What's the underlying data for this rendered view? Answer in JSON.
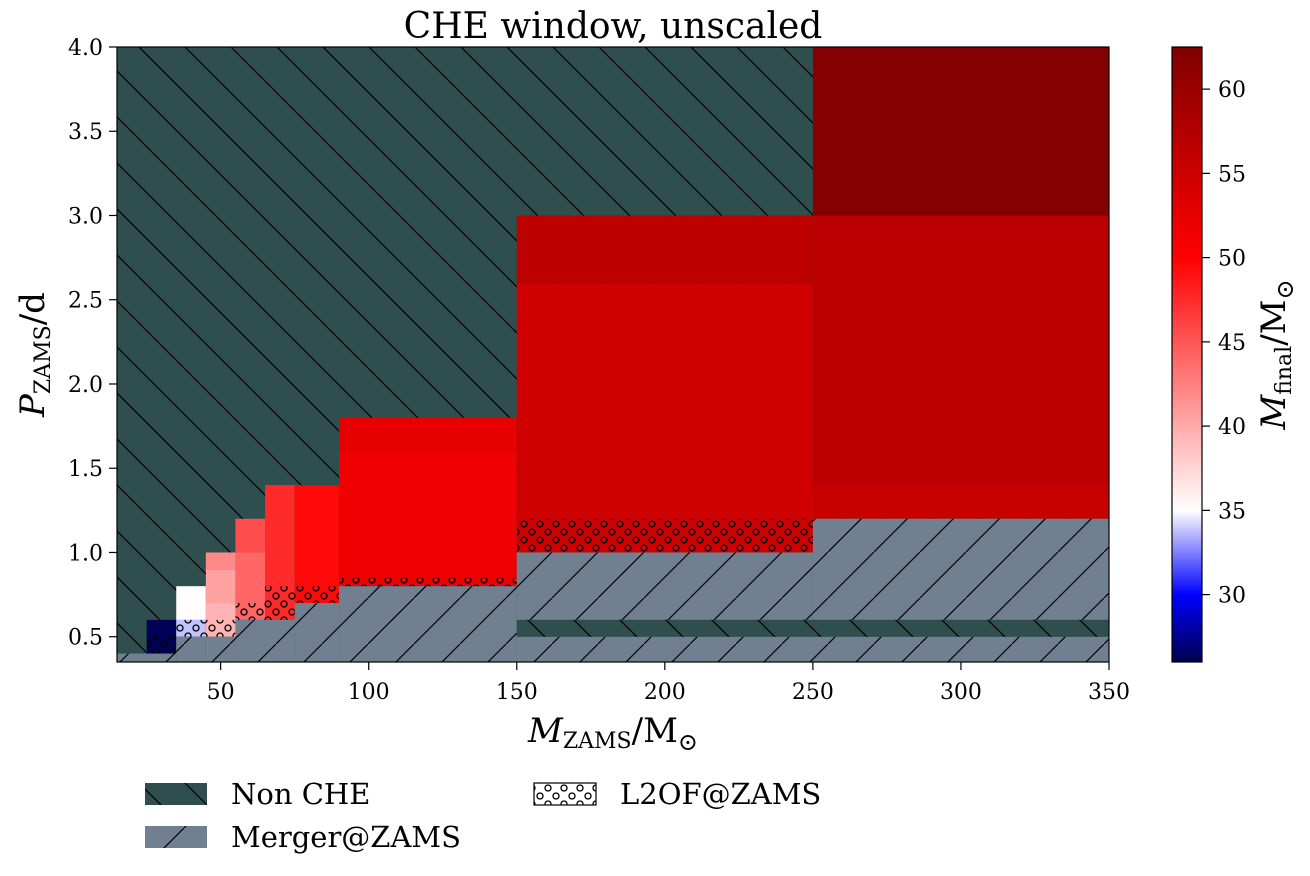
{
  "chart_data": {
    "type": "heatmap",
    "title": "CHE window, unscaled",
    "xlabel": {
      "var": "M",
      "sub": "ZAMS",
      "unit": "M",
      "unit_sub": "⊙"
    },
    "ylabel": {
      "var": "P",
      "sub": "ZAMS",
      "unit": "d"
    },
    "xlim": [
      15,
      350
    ],
    "ylim": [
      0.35,
      4.0
    ],
    "x_ticks": [
      {
        "value": 50,
        "label": "50"
      },
      {
        "value": 100,
        "label": "100"
      },
      {
        "value": 150,
        "label": "150"
      },
      {
        "value": 200,
        "label": "200"
      },
      {
        "value": 250,
        "label": "250"
      },
      {
        "value": 300,
        "label": "300"
      },
      {
        "value": 350,
        "label": "350"
      }
    ],
    "y_ticks": [
      {
        "value": 0.5,
        "label": "0.5"
      },
      {
        "value": 1.0,
        "label": "1.0"
      },
      {
        "value": 1.5,
        "label": "1.5"
      },
      {
        "value": 2.0,
        "label": "2.0"
      },
      {
        "value": 2.5,
        "label": "2.5"
      },
      {
        "value": 3.0,
        "label": "3.0"
      },
      {
        "value": 3.5,
        "label": "3.5"
      },
      {
        "value": 4.0,
        "label": "4.0"
      }
    ],
    "colorbar": {
      "label": {
        "var": "M",
        "sub": "final",
        "unit": "M",
        "unit_sub": "⊙"
      },
      "range": [
        26,
        62.5
      ],
      "ticks": [
        {
          "value": 30,
          "label": "30"
        },
        {
          "value": 35,
          "label": "35"
        },
        {
          "value": 40,
          "label": "40"
        },
        {
          "value": 45,
          "label": "45"
        },
        {
          "value": 50,
          "label": "50"
        },
        {
          "value": 55,
          "label": "55"
        },
        {
          "value": 60,
          "label": "60"
        }
      ],
      "stops": [
        {
          "value": 26,
          "color": "#00004c"
        },
        {
          "value": 30,
          "color": "#0000ff"
        },
        {
          "value": 35,
          "color": "#ffffff"
        },
        {
          "value": 50,
          "color": "#ff0000"
        },
        {
          "value": 62.5,
          "color": "#800000"
        }
      ]
    },
    "regions": {
      "non_che": {
        "color": "#2f4f4f",
        "hatch": "backslash"
      },
      "merger": {
        "color": "#708090",
        "hatch": "slash"
      },
      "l2of": {
        "hatch": "circles"
      }
    },
    "cells": [
      {
        "x": [
          25,
          35
        ],
        "y": [
          0.4,
          0.6
        ],
        "m_final": 26.2
      },
      {
        "x": [
          35,
          45
        ],
        "y": [
          0.5,
          0.6
        ],
        "m_final": 33.8
      },
      {
        "x": [
          35,
          45
        ],
        "y": [
          0.6,
          0.8
        ],
        "m_final": 35.1
      },
      {
        "x": [
          45,
          55
        ],
        "y": [
          0.5,
          0.7
        ],
        "m_final": 39.5
      },
      {
        "x": [
          45,
          55
        ],
        "y": [
          0.7,
          0.9
        ],
        "m_final": 40.5
      },
      {
        "x": [
          45,
          55
        ],
        "y": [
          0.9,
          1.0
        ],
        "m_final": 42.0
      },
      {
        "x": [
          55,
          65
        ],
        "y": [
          0.6,
          1.0
        ],
        "m_final": 44.0
      },
      {
        "x": [
          55,
          65
        ],
        "y": [
          1.0,
          1.2
        ],
        "m_final": 45.5
      },
      {
        "x": [
          65,
          75
        ],
        "y": [
          0.6,
          1.4
        ],
        "m_final": 47.5
      },
      {
        "x": [
          75,
          90
        ],
        "y": [
          0.7,
          1.4
        ],
        "m_final": 49.5
      },
      {
        "x": [
          90,
          150
        ],
        "y": [
          0.8,
          1.6
        ],
        "m_final": 51.5
      },
      {
        "x": [
          90,
          150
        ],
        "y": [
          1.6,
          1.8
        ],
        "m_final": 52.5
      },
      {
        "x": [
          150,
          250
        ],
        "y": [
          1.0,
          2.6
        ],
        "m_final": 54.5
      },
      {
        "x": [
          150,
          250
        ],
        "y": [
          2.6,
          3.0
        ],
        "m_final": 56.5
      },
      {
        "x": [
          250,
          350
        ],
        "y": [
          1.2,
          1.4
        ],
        "m_final": 55.5
      },
      {
        "x": [
          250,
          350
        ],
        "y": [
          1.4,
          3.0
        ],
        "m_final": 56.8
      },
      {
        "x": [
          250,
          350
        ],
        "y": [
          3.0,
          4.0
        ],
        "m_final": 62.0
      }
    ],
    "merger_regions": [
      {
        "x": [
          15,
          25
        ],
        "y": [
          0.35,
          0.4
        ]
      },
      {
        "x": [
          25,
          35
        ],
        "y": [
          0.35,
          0.4
        ]
      },
      {
        "x": [
          35,
          45
        ],
        "y": [
          0.35,
          0.5
        ]
      },
      {
        "x": [
          45,
          55
        ],
        "y": [
          0.35,
          0.5
        ]
      },
      {
        "x": [
          55,
          65
        ],
        "y": [
          0.35,
          0.6
        ]
      },
      {
        "x": [
          65,
          75
        ],
        "y": [
          0.35,
          0.6
        ]
      },
      {
        "x": [
          75,
          90
        ],
        "y": [
          0.35,
          0.7
        ]
      },
      {
        "x": [
          90,
          150
        ],
        "y": [
          0.35,
          0.8
        ]
      },
      {
        "x": [
          150,
          350
        ],
        "y": [
          0.35,
          0.5
        ]
      },
      {
        "x": [
          150,
          250
        ],
        "y": [
          0.6,
          1.0
        ]
      },
      {
        "x": [
          250,
          350
        ],
        "y": [
          0.6,
          1.2
        ]
      }
    ],
    "non_che_extra": [
      {
        "x": [
          150,
          350
        ],
        "y": [
          0.5,
          0.6
        ]
      }
    ],
    "l2of_regions": [
      {
        "x": [
          25,
          35
        ],
        "y": [
          0.4,
          0.5
        ]
      },
      {
        "x": [
          35,
          45
        ],
        "y": [
          0.5,
          0.6
        ]
      },
      {
        "x": [
          45,
          55
        ],
        "y": [
          0.5,
          0.6
        ]
      },
      {
        "x": [
          55,
          65
        ],
        "y": [
          0.6,
          0.7
        ]
      },
      {
        "x": [
          65,
          75
        ],
        "y": [
          0.6,
          0.8
        ]
      },
      {
        "x": [
          75,
          90
        ],
        "y": [
          0.7,
          0.8
        ]
      },
      {
        "x": [
          90,
          150
        ],
        "y": [
          0.8,
          0.85
        ]
      },
      {
        "x": [
          150,
          250
        ],
        "y": [
          1.0,
          1.2
        ]
      }
    ],
    "legend": {
      "placement": "bottom",
      "entries": [
        {
          "label": "Non CHE",
          "style": "non_che"
        },
        {
          "label": "Merger@ZAMS",
          "style": "merger"
        },
        {
          "label": "L2OF@ZAMS",
          "style": "l2of"
        }
      ]
    }
  }
}
